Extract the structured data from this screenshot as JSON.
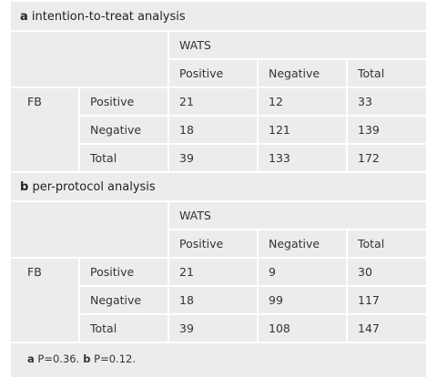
{
  "sections": [
    {
      "label": "a",
      "title": "intention-to-treat analysis",
      "group": "WATS",
      "columns": [
        "Positive",
        "Negative",
        "Total"
      ],
      "row_group": "FB",
      "rows": [
        {
          "label": "Positive",
          "cells": [
            "21",
            "12",
            "33"
          ]
        },
        {
          "label": "Negative",
          "cells": [
            "18",
            "121",
            "139"
          ]
        },
        {
          "label": "Total",
          "cells": [
            "39",
            "133",
            "172"
          ]
        }
      ]
    },
    {
      "label": "b",
      "title": "per-protocol analysis",
      "group": "WATS",
      "columns": [
        "Positive",
        "Negative",
        "Total"
      ],
      "row_group": "FB",
      "rows": [
        {
          "label": "Positive",
          "cells": [
            "21",
            "9",
            "30"
          ]
        },
        {
          "label": "Negative",
          "cells": [
            "18",
            "99",
            "117"
          ]
        },
        {
          "label": "Total",
          "cells": [
            "39",
            "108",
            "147"
          ]
        }
      ]
    }
  ],
  "footnote": [
    {
      "label": "a",
      "text": "P=0.36."
    },
    {
      "label": "b",
      "text": "P=0.12."
    }
  ]
}
